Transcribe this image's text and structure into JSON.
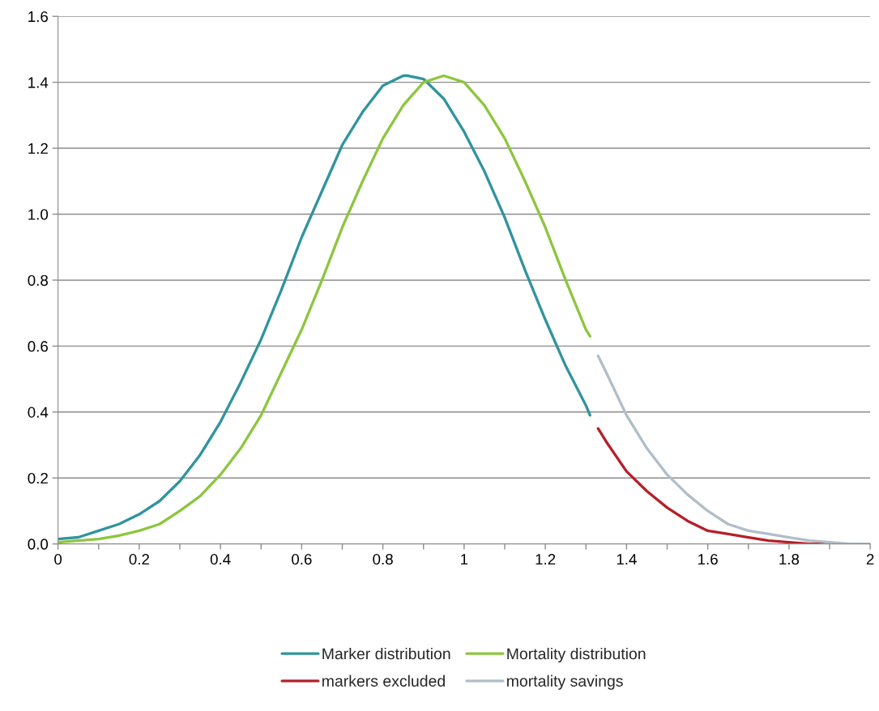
{
  "chart_data": {
    "type": "line",
    "xlim": [
      0,
      2
    ],
    "ylim": [
      0,
      1.6
    ],
    "xticks": [
      0,
      {
        "value": 0.1,
        "label": null
      },
      0.2,
      {
        "value": 0.3,
        "label": null
      },
      0.4,
      {
        "value": 0.5,
        "label": null
      },
      0.6,
      {
        "value": 0.7,
        "label": null
      },
      0.8,
      {
        "value": 0.9,
        "label": null
      },
      1,
      {
        "value": 1.1,
        "label": null
      },
      1.2,
      {
        "value": 1.3,
        "label": null
      },
      1.4,
      {
        "value": 1.5,
        "label": null
      },
      1.6,
      {
        "value": 1.7,
        "label": null
      },
      1.8,
      {
        "value": 1.9,
        "label": null
      },
      2
    ],
    "yticks": [
      {
        "value": 0,
        "label": "0.0"
      },
      0.2,
      0.4,
      0.6,
      0.8,
      {
        "value": 1,
        "label": "1.0"
      },
      1.2,
      1.4,
      1.6
    ],
    "grid": "y",
    "legend": "bottom",
    "marker": "none",
    "line_style": "solid",
    "series": [
      {
        "name": "Marker distribution",
        "color": "#31949e",
        "x": [
          0,
          0.05,
          0.1,
          0.15,
          0.2,
          0.25,
          0.3,
          0.35,
          0.4,
          0.45,
          0.5,
          0.55,
          0.6,
          0.65,
          0.7,
          0.75,
          0.8,
          0.85,
          0.86,
          0.9,
          0.95,
          1.0,
          1.05,
          1.1,
          1.15,
          1.2,
          1.25,
          1.3,
          1.31
        ],
        "values": [
          0.015,
          0.02,
          0.04,
          0.06,
          0.09,
          0.13,
          0.19,
          0.27,
          0.37,
          0.49,
          0.62,
          0.77,
          0.93,
          1.07,
          1.21,
          1.31,
          1.39,
          1.42,
          1.42,
          1.41,
          1.35,
          1.25,
          1.13,
          0.99,
          0.83,
          0.68,
          0.54,
          0.42,
          0.39
        ]
      },
      {
        "name": "Mortality distribution",
        "color": "#8dc63f",
        "x": [
          0,
          0.05,
          0.1,
          0.15,
          0.2,
          0.25,
          0.3,
          0.35,
          0.4,
          0.45,
          0.5,
          0.55,
          0.6,
          0.65,
          0.7,
          0.75,
          0.8,
          0.85,
          0.9,
          0.95,
          1.0,
          1.05,
          1.1,
          1.15,
          1.2,
          1.25,
          1.3,
          1.31
        ],
        "values": [
          0.005,
          0.01,
          0.015,
          0.025,
          0.04,
          0.06,
          0.1,
          0.145,
          0.21,
          0.29,
          0.39,
          0.52,
          0.65,
          0.8,
          0.96,
          1.1,
          1.23,
          1.33,
          1.4,
          1.42,
          1.4,
          1.33,
          1.23,
          1.1,
          0.96,
          0.8,
          0.65,
          0.63
        ]
      },
      {
        "name": "markers excluded",
        "color": "#b5202a",
        "x": [
          1.33,
          1.35,
          1.4,
          1.45,
          1.5,
          1.55,
          1.6,
          1.65,
          1.7,
          1.75,
          1.8,
          1.85,
          1.9
        ],
        "values": [
          0.35,
          0.31,
          0.22,
          0.16,
          0.11,
          0.07,
          0.04,
          0.03,
          0.02,
          0.01,
          0.005,
          0,
          0
        ]
      },
      {
        "name": "mortality savings",
        "color": "#b0bec8",
        "x": [
          1.33,
          1.35,
          1.4,
          1.45,
          1.5,
          1.55,
          1.6,
          1.65,
          1.7,
          1.75,
          1.8,
          1.85,
          1.9,
          1.95,
          2.0
        ],
        "values": [
          0.57,
          0.52,
          0.39,
          0.29,
          0.21,
          0.15,
          0.1,
          0.06,
          0.04,
          0.03,
          0.02,
          0.01,
          0.005,
          0,
          0
        ]
      }
    ]
  }
}
